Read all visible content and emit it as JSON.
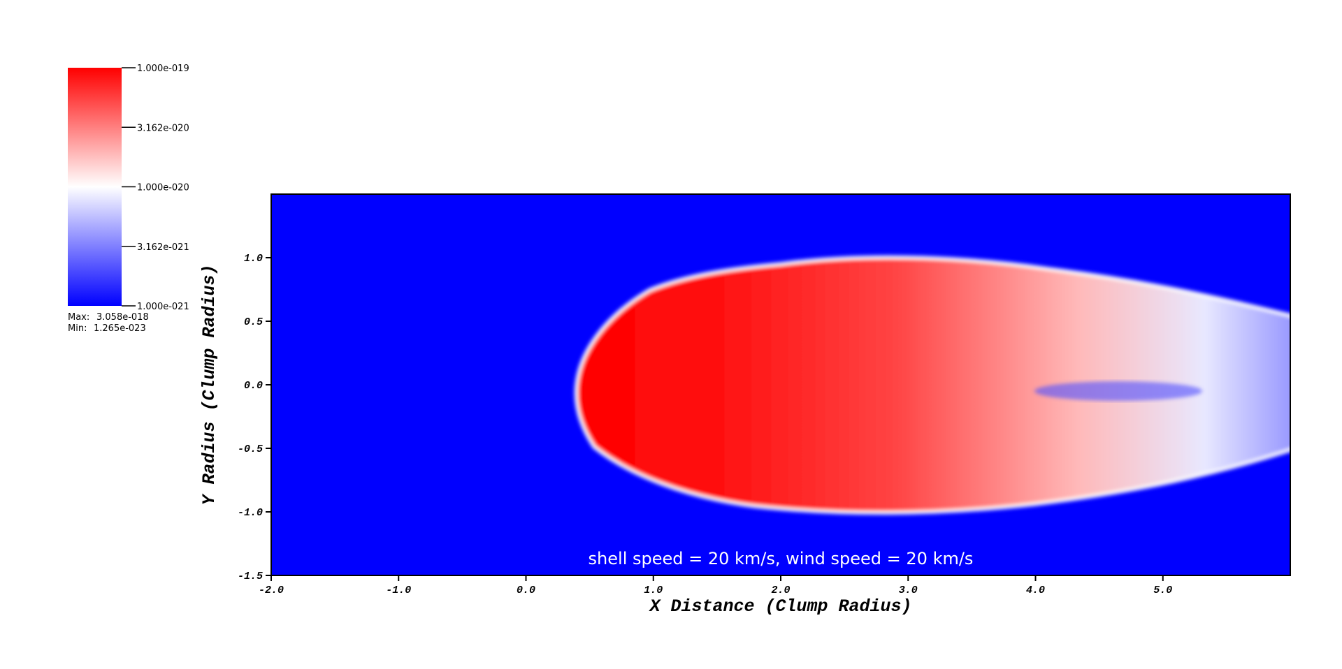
{
  "chart_data": {
    "type": "heatmap",
    "xlabel": "X Distance (Clump Radius)",
    "ylabel": "Y Radius (Clump Radius)",
    "annotation": "shell speed = 20 km/s, wind speed = 20 km/s",
    "xlim": [
      -2.0,
      6.0
    ],
    "ylim": [
      -1.5,
      1.5
    ],
    "xticks": [
      {
        "value": -2,
        "label": "-2.0"
      },
      {
        "value": -1,
        "label": "-1.0"
      },
      {
        "value": 0,
        "label": "0.0"
      },
      {
        "value": 1,
        "label": "1.0"
      },
      {
        "value": 2,
        "label": "2.0"
      },
      {
        "value": 3,
        "label": "3.0"
      },
      {
        "value": 4,
        "label": "4.0"
      },
      {
        "value": 5,
        "label": "5.0"
      }
    ],
    "yticks": [
      {
        "value": -1.5,
        "label": "-1.5"
      },
      {
        "value": -1,
        "label": "-1.0"
      },
      {
        "value": -0.5,
        "label": "-0.5"
      },
      {
        "value": 0,
        "label": "0.0"
      },
      {
        "value": 0.5,
        "label": "0.5"
      },
      {
        "value": 1,
        "label": "1.0"
      }
    ],
    "colorbar": {
      "log_scale": true,
      "lim": [
        1e-21,
        1e-19
      ],
      "colors": [
        "#0000ff",
        "#ffffff",
        "#ff0000"
      ],
      "ticks": [
        {
          "value": 1e-19,
          "label": "1.000e-019"
        },
        {
          "value": 3.162e-20,
          "label": "3.162e-020"
        },
        {
          "value": 1e-20,
          "label": "1.000e-020"
        },
        {
          "value": 3.162e-21,
          "label": "3.162e-021"
        },
        {
          "value": 1e-21,
          "label": "1.000e-021"
        }
      ],
      "max_label": "Max:",
      "max": {
        "value": 3.058e-18,
        "label": "3.058e-018"
      },
      "min_label": "Min:",
      "min": {
        "value": 1.265e-23,
        "label": "1.265e-023"
      }
    }
  }
}
